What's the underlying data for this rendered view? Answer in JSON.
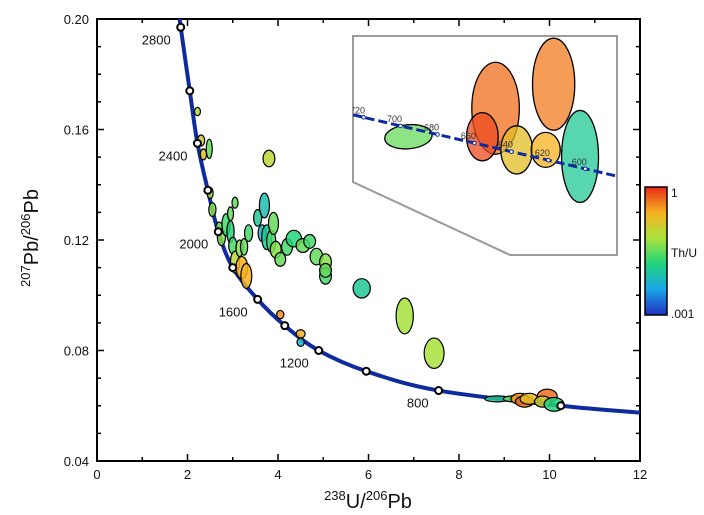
{
  "chart_data": {
    "type": "scatter",
    "title": "",
    "xlabel": {
      "sup": "238",
      "base": "U/",
      "sup2": "206",
      "base2": "Pb"
    },
    "ylabel": {
      "sup": "207",
      "base": "Pb/",
      "sup2": "206",
      "base2": "Pb"
    },
    "xlim": [
      0,
      12
    ],
    "ylim": [
      0.04,
      0.2
    ],
    "xticks": [
      "0",
      "2",
      "4",
      "6",
      "8",
      "10",
      "12"
    ],
    "yticks": [
      "0.04",
      "0.08",
      "0.12",
      "0.16",
      "0.20"
    ],
    "concordia_markers": [
      {
        "x": 1.85,
        "y": 0.197,
        "label": "2800"
      },
      {
        "x": 2.05,
        "y": 0.174,
        "label": ""
      },
      {
        "x": 2.22,
        "y": 0.155,
        "label": "2400"
      },
      {
        "x": 2.45,
        "y": 0.138,
        "label": ""
      },
      {
        "x": 2.68,
        "y": 0.123,
        "label": "2000"
      },
      {
        "x": 3.0,
        "y": 0.11,
        "label": ""
      },
      {
        "x": 3.55,
        "y": 0.0985,
        "label": "1600"
      },
      {
        "x": 4.15,
        "y": 0.089,
        "label": ""
      },
      {
        "x": 4.9,
        "y": 0.08,
        "label": "1200"
      },
      {
        "x": 5.95,
        "y": 0.0725,
        "label": ""
      },
      {
        "x": 7.55,
        "y": 0.0655,
        "label": "800"
      },
      {
        "x": 10.25,
        "y": 0.06,
        "label": ""
      }
    ],
    "ellipses": [
      {
        "x": 2.22,
        "y": 0.1665,
        "th_u": 0.6,
        "rx": 0.06,
        "ry": 0.0015
      },
      {
        "x": 2.3,
        "y": 0.156,
        "th_u": 0.7,
        "rx": 0.08,
        "ry": 0.002
      },
      {
        "x": 2.35,
        "y": 0.151,
        "th_u": 0.75,
        "rx": 0.07,
        "ry": 0.002
      },
      {
        "x": 2.48,
        "y": 0.153,
        "th_u": 0.5,
        "rx": 0.06,
        "ry": 0.0035
      },
      {
        "x": 2.5,
        "y": 0.137,
        "th_u": 0.6,
        "rx": 0.06,
        "ry": 0.002
      },
      {
        "x": 2.55,
        "y": 0.131,
        "th_u": 0.55,
        "rx": 0.08,
        "ry": 0.0025
      },
      {
        "x": 2.7,
        "y": 0.124,
        "th_u": 0.5,
        "rx": 0.08,
        "ry": 0.0025
      },
      {
        "x": 2.75,
        "y": 0.121,
        "th_u": 0.55,
        "rx": 0.09,
        "ry": 0.003
      },
      {
        "x": 2.85,
        "y": 0.1255,
        "th_u": 0.45,
        "rx": 0.09,
        "ry": 0.004
      },
      {
        "x": 2.95,
        "y": 0.1295,
        "th_u": 0.5,
        "rx": 0.06,
        "ry": 0.0025
      },
      {
        "x": 3.05,
        "y": 0.1335,
        "th_u": 0.5,
        "rx": 0.06,
        "ry": 0.002
      },
      {
        "x": 2.95,
        "y": 0.123,
        "th_u": 0.4,
        "rx": 0.08,
        "ry": 0.004
      },
      {
        "x": 3.0,
        "y": 0.118,
        "th_u": 0.45,
        "rx": 0.09,
        "ry": 0.003
      },
      {
        "x": 3.05,
        "y": 0.112,
        "th_u": 0.65,
        "rx": 0.1,
        "ry": 0.004
      },
      {
        "x": 3.15,
        "y": 0.117,
        "th_u": 0.55,
        "rx": 0.08,
        "ry": 0.003
      },
      {
        "x": 3.2,
        "y": 0.11,
        "th_u": 0.8,
        "rx": 0.13,
        "ry": 0.004
      },
      {
        "x": 3.3,
        "y": 0.107,
        "th_u": 0.8,
        "rx": 0.12,
        "ry": 0.0045
      },
      {
        "x": 3.25,
        "y": 0.1175,
        "th_u": 0.5,
        "rx": 0.08,
        "ry": 0.003
      },
      {
        "x": 3.35,
        "y": 0.1225,
        "th_u": 0.45,
        "rx": 0.09,
        "ry": 0.003
      },
      {
        "x": 3.55,
        "y": 0.128,
        "th_u": 0.35,
        "rx": 0.09,
        "ry": 0.003
      },
      {
        "x": 3.65,
        "y": 0.1225,
        "th_u": 0.25,
        "rx": 0.09,
        "ry": 0.003
      },
      {
        "x": 3.7,
        "y": 0.1325,
        "th_u": 0.3,
        "rx": 0.11,
        "ry": 0.0045
      },
      {
        "x": 3.8,
        "y": 0.1495,
        "th_u": 0.65,
        "rx": 0.13,
        "ry": 0.003
      },
      {
        "x": 3.75,
        "y": 0.121,
        "th_u": 0.35,
        "rx": 0.11,
        "ry": 0.0045
      },
      {
        "x": 3.85,
        "y": 0.1195,
        "th_u": 0.45,
        "rx": 0.1,
        "ry": 0.004
      },
      {
        "x": 3.9,
        "y": 0.126,
        "th_u": 0.5,
        "rx": 0.11,
        "ry": 0.004
      },
      {
        "x": 3.95,
        "y": 0.1165,
        "th_u": 0.55,
        "rx": 0.12,
        "ry": 0.003
      },
      {
        "x": 4.05,
        "y": 0.113,
        "th_u": 0.5,
        "rx": 0.12,
        "ry": 0.0025
      },
      {
        "x": 4.2,
        "y": 0.1175,
        "th_u": 0.45,
        "rx": 0.12,
        "ry": 0.003
      },
      {
        "x": 4.35,
        "y": 0.1205,
        "th_u": 0.4,
        "rx": 0.17,
        "ry": 0.003
      },
      {
        "x": 4.55,
        "y": 0.118,
        "th_u": 0.5,
        "rx": 0.15,
        "ry": 0.0025
      },
      {
        "x": 4.7,
        "y": 0.1195,
        "th_u": 0.45,
        "rx": 0.13,
        "ry": 0.0025
      },
      {
        "x": 4.85,
        "y": 0.114,
        "th_u": 0.5,
        "rx": 0.14,
        "ry": 0.003
      },
      {
        "x": 5.05,
        "y": 0.112,
        "th_u": 0.55,
        "rx": 0.13,
        "ry": 0.003
      },
      {
        "x": 5.05,
        "y": 0.107,
        "th_u": 0.45,
        "rx": 0.13,
        "ry": 0.003
      },
      {
        "x": 5.05,
        "y": 0.109,
        "th_u": 0.5,
        "rx": 0.13,
        "ry": 0.0025
      },
      {
        "x": 4.05,
        "y": 0.093,
        "th_u": 0.85,
        "rx": 0.08,
        "ry": 0.0015
      },
      {
        "x": 4.5,
        "y": 0.086,
        "th_u": 0.8,
        "rx": 0.1,
        "ry": 0.0015
      },
      {
        "x": 4.5,
        "y": 0.083,
        "th_u": 0.25,
        "rx": 0.08,
        "ry": 0.0015
      },
      {
        "x": 5.85,
        "y": 0.1025,
        "th_u": 0.35,
        "rx": 0.19,
        "ry": 0.0035
      },
      {
        "x": 6.8,
        "y": 0.0925,
        "th_u": 0.6,
        "rx": 0.19,
        "ry": 0.0065
      },
      {
        "x": 7.45,
        "y": 0.079,
        "th_u": 0.6,
        "rx": 0.22,
        "ry": 0.0055
      },
      {
        "x": 8.85,
        "y": 0.0625,
        "th_u": 0.35,
        "rx": 0.28,
        "ry": 0.0007
      },
      {
        "x": 9.2,
        "y": 0.0625,
        "th_u": 0.5,
        "rx": 0.22,
        "ry": 0.001
      },
      {
        "x": 9.35,
        "y": 0.0625,
        "th_u": 0.85,
        "rx": 0.2,
        "ry": 0.002
      },
      {
        "x": 9.45,
        "y": 0.0615,
        "th_u": 0.9,
        "rx": 0.2,
        "ry": 0.002
      },
      {
        "x": 9.55,
        "y": 0.0625,
        "th_u": 0.75,
        "rx": 0.2,
        "ry": 0.002
      },
      {
        "x": 9.95,
        "y": 0.0635,
        "th_u": 0.9,
        "rx": 0.22,
        "ry": 0.0025
      },
      {
        "x": 9.85,
        "y": 0.0615,
        "th_u": 0.7,
        "rx": 0.18,
        "ry": 0.002
      },
      {
        "x": 10.1,
        "y": 0.0605,
        "th_u": 0.4,
        "rx": 0.22,
        "ry": 0.0025
      }
    ],
    "inset": {
      "age_labels": [
        "720",
        "700",
        "680",
        "660",
        "640",
        "620",
        "600"
      ],
      "ellipses": [
        {
          "th_u": 0.5,
          "cx": 0.21,
          "cy": 0.46,
          "rx": 0.18,
          "ry": 0.11,
          "rot": -5
        },
        {
          "th_u": 0.9,
          "cx": 0.54,
          "cy": 0.33,
          "rx": 0.18,
          "ry": 0.42,
          "rot": 0
        },
        {
          "th_u": 0.88,
          "cx": 0.76,
          "cy": 0.22,
          "rx": 0.16,
          "ry": 0.42,
          "rot": 0
        },
        {
          "th_u": 0.95,
          "cx": 0.49,
          "cy": 0.46,
          "rx": 0.12,
          "ry": 0.22,
          "rot": 0
        },
        {
          "th_u": 0.75,
          "cx": 0.62,
          "cy": 0.52,
          "rx": 0.12,
          "ry": 0.22,
          "rot": 0
        },
        {
          "th_u": 0.8,
          "cx": 0.73,
          "cy": 0.52,
          "rx": 0.11,
          "ry": 0.16,
          "rot": 0
        },
        {
          "th_u": 0.35,
          "cx": 0.86,
          "cy": 0.55,
          "rx": 0.14,
          "ry": 0.42,
          "rot": 0
        }
      ]
    },
    "colorbar": {
      "label": "Th/U",
      "max_label": "1",
      "min_label": ".001"
    },
    "colors": {
      "concordia": "#0f2b9e",
      "axis": "#000000",
      "inset_frame": "#9a9a9a"
    }
  }
}
